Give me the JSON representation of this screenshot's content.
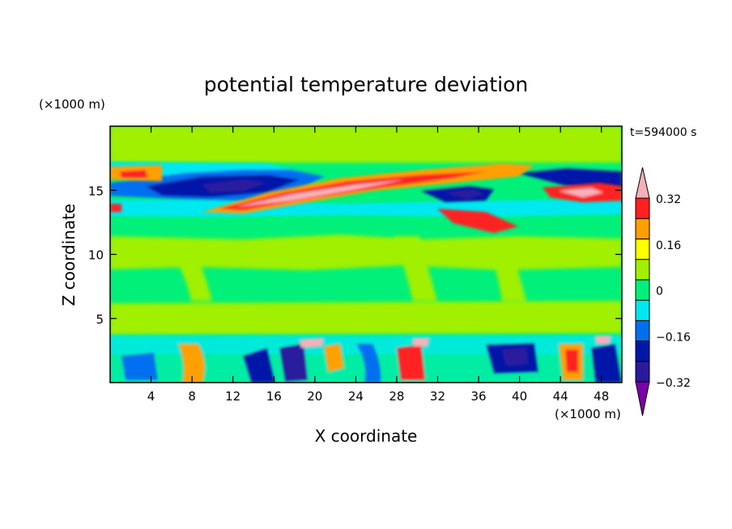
{
  "chart_data": {
    "type": "heatmap",
    "title": "potential temperature deviation",
    "xlabel": "X coordinate",
    "ylabel": "Z coordinate",
    "x_unit": "(×1000 m)",
    "y_unit": "(×1000 m)",
    "time_label": "t=594000 s",
    "xlim": [
      0,
      50
    ],
    "ylim": [
      0,
      20
    ],
    "x_ticks": [
      4,
      8,
      12,
      16,
      20,
      24,
      28,
      32,
      36,
      40,
      44,
      48
    ],
    "y_ticks": [
      5,
      10,
      15
    ],
    "colorbar": {
      "labels": [
        "0.32",
        "0.16",
        "0",
        "−0.16",
        "−0.32"
      ],
      "label_values": [
        0.32,
        0.16,
        0,
        -0.16,
        -0.32
      ],
      "levels": [
        -0.4,
        -0.32,
        -0.24,
        -0.16,
        -0.08,
        0,
        0.08,
        0.16,
        0.24,
        0.32,
        0.4
      ],
      "colors": [
        "#7B00A8",
        "#2A1A9E",
        "#0018A8",
        "#0070F0",
        "#00E8F0",
        "#00F07A",
        "#A0F000",
        "#FFFF00",
        "#FFA000",
        "#FF2020",
        "#F8B0B8"
      ],
      "extend": "both"
    }
  }
}
